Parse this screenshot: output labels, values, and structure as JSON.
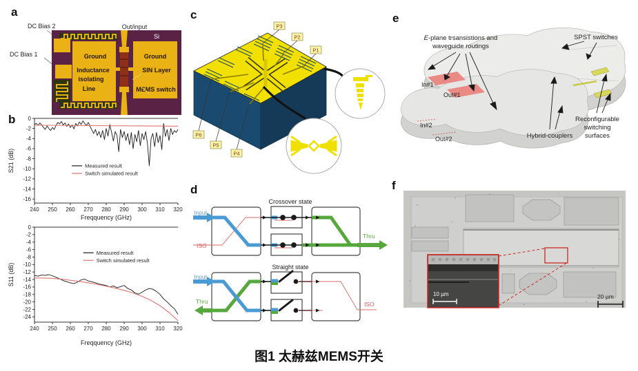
{
  "caption": "图1 太赫兹MEMS开关",
  "panels": {
    "a": {
      "letter": "a",
      "labels": {
        "dc_bias_2": "DC Bias 2",
        "dc_bias_1": "DC Bias 1",
        "out_input": "Out/input",
        "si": "Si",
        "ground_left": "Ground",
        "inductance": [
          "Inductance",
          "isolating",
          "Line"
        ],
        "ground_right": "Ground",
        "sin_layer": "SIN Layer",
        "mems_switch": "MEMS switch"
      }
    },
    "b": {
      "letter": "b"
    },
    "c": {
      "letter": "c",
      "ports": {
        "p1": "P1",
        "p2": "P2",
        "p3": "P3",
        "p4": "P4",
        "p5": "P5",
        "p6": "P6"
      }
    },
    "d": {
      "letter": "d",
      "labels": {
        "crossover_title": "Crossover state",
        "straight_title": "Straight state",
        "input": "Input",
        "iso": "ISO",
        "thru": "Thru"
      }
    },
    "e": {
      "letter": "e",
      "labels": {
        "eplane_e": "E",
        "eplane_rest": "-plane trsansistions and",
        "eplane_line2": "waveguide routings",
        "spst": "SPST switches",
        "in1": "In#1",
        "out1": "Out#1",
        "in2": "In#2",
        "out2": "Out#2",
        "hybrid": "Hybrid-couplers",
        "reconfig": [
          "Reconfigurable",
          "switching",
          "surfaces"
        ]
      }
    },
    "f": {
      "letter": "f",
      "labels": {
        "scale_inset": "10 µm",
        "scale_main": "20 µm"
      }
    }
  },
  "chart_data": [
    {
      "type": "line",
      "title": "",
      "xlabel": "Freqquency (GHz)",
      "ylabel": "S21 (dB)",
      "xlim": [
        240,
        320
      ],
      "ylim": [
        -16.8,
        0
      ],
      "x_ticks": [
        240,
        250,
        260,
        270,
        280,
        290,
        300,
        310,
        320
      ],
      "y_ticks": [
        0,
        -2,
        -4,
        -6,
        -8,
        -10,
        -12,
        -14,
        -16
      ],
      "grid": false,
      "legend_position": "center-left-inside",
      "series": [
        {
          "name": "Measured result",
          "color": "#1a1a1a",
          "width": 0.9,
          "x0": 240,
          "dx": 1,
          "y": [
            -1.2,
            -1.0,
            -1.4,
            -0.9,
            -1.3,
            -1.8,
            -2.2,
            -1.5,
            -2.0,
            -2.4,
            -1.8,
            -2.2,
            -1.4,
            -0.8,
            -1.1,
            -0.6,
            -1.3,
            -0.9,
            -1.6,
            -1.1,
            -1.8,
            -1.3,
            -2.1,
            -1.0,
            -1.5,
            -0.7,
            -1.2,
            -0.5,
            -1.0,
            -1.4,
            -0.8,
            -1.6,
            -2.3,
            -3.0,
            -2.2,
            -3.4,
            -2.6,
            -3.8,
            -2.4,
            -4.2,
            -2.0,
            -3.5,
            -1.2,
            -2.8,
            -4.5,
            -2.6,
            -3.4,
            -6.6,
            -2.2,
            -3.8,
            -2.6,
            -4.4,
            -3.0,
            -5.2,
            -2.8,
            -6.0,
            -3.2,
            -4.6,
            -2.4,
            -5.4,
            -3.0,
            -4.2,
            -2.6,
            -5.0,
            -9.4,
            -4.0,
            -3.0,
            -5.6,
            -2.8,
            -4.8,
            -3.4,
            -6.2,
            -1.0,
            -3.6,
            -2.2,
            -4.4,
            -2.0,
            -3.2,
            -2.4,
            -2.8,
            -2.2
          ]
        },
        {
          "name": "Switch simulated result",
          "color": "#dd7470",
          "width": 1.1,
          "xs": [
            240,
            260,
            280,
            300,
            320
          ],
          "ys": [
            -1.35,
            -1.4,
            -1.45,
            -1.5,
            -1.55
          ]
        }
      ]
    },
    {
      "type": "line",
      "title": "",
      "xlabel": "Freqquency (GHz)",
      "ylabel": "S11 (dB)",
      "xlim": [
        240,
        320
      ],
      "ylim": [
        -25.4,
        0
      ],
      "x_ticks": [
        240,
        250,
        260,
        270,
        280,
        290,
        300,
        310,
        320
      ],
      "y_ticks": [
        0,
        -2,
        -4,
        -6,
        -8,
        -10,
        -12,
        -14,
        -16,
        -18,
        -20,
        -22,
        -24
      ],
      "grid": false,
      "legend_position": "center-inside",
      "series": [
        {
          "name": "Measured result",
          "color": "#1a1a1a",
          "width": 0.9,
          "x0": 240,
          "dx": 2,
          "y": [
            -12.9,
            -13.1,
            -12.8,
            -12.9,
            -12.7,
            -13.0,
            -13.4,
            -13.8,
            -14.3,
            -14.6,
            -14.9,
            -15.1,
            -14.7,
            -14.1,
            -13.9,
            -14.4,
            -14.6,
            -14.9,
            -15.2,
            -15.4,
            -15.6,
            -16.0,
            -15.7,
            -16.2,
            -15.9,
            -15.6,
            -16.4,
            -16.8,
            -17.6,
            -17.9,
            -17.4,
            -16.8,
            -16.4,
            -16.6,
            -17.2,
            -18.0,
            -19.2,
            -20.0,
            -21.0,
            -21.8,
            -23.3
          ]
        },
        {
          "name": "Switch simulated result",
          "color": "#dd7470",
          "width": 1.1,
          "xs": [
            240,
            245,
            250,
            255,
            260,
            265,
            270,
            275,
            280,
            285,
            290,
            295,
            300,
            305,
            310,
            315,
            320
          ],
          "ys": [
            -13.6,
            -13.6,
            -13.7,
            -13.9,
            -14.2,
            -14.5,
            -14.9,
            -15.3,
            -15.8,
            -16.3,
            -16.9,
            -17.6,
            -18.5,
            -19.6,
            -21.0,
            -22.8,
            -25.0
          ]
        }
      ]
    }
  ]
}
